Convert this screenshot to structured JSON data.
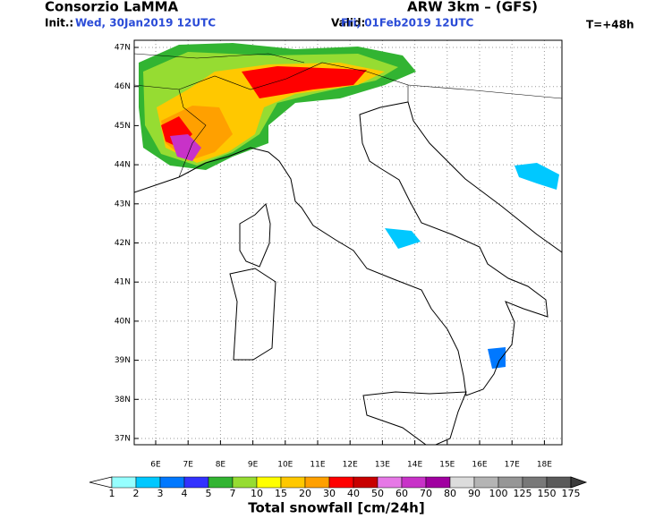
{
  "header": {
    "title": "Consorzio LaMMA",
    "model": "ARW 3km – (GFS)",
    "init_label": "Init.:",
    "init_value": "Wed, 30Jan2019 12UTC",
    "valid_label": "Valid:",
    "valid_value": "Fri, 01Feb2019 12UTC",
    "lead": "T=+48h"
  },
  "map": {
    "lat_labels": [
      "47N",
      "46N",
      "45N",
      "44N",
      "43N",
      "42N",
      "41N",
      "40N",
      "39N",
      "38N",
      "37N"
    ],
    "lon_labels": [
      "6E",
      "7E",
      "8E",
      "9E",
      "10E",
      "11E",
      "12E",
      "13E",
      "14E",
      "15E",
      "16E",
      "17E",
      "18E"
    ]
  },
  "colorbar": {
    "title": "Total snowfall [cm/24h]",
    "labels": [
      1,
      2,
      3,
      4,
      5,
      7,
      10,
      15,
      20,
      30,
      40,
      50,
      60,
      70,
      80,
      90,
      100,
      125,
      150,
      175
    ],
    "colors": [
      "#96ffff",
      "#00c8ff",
      "#0078ff",
      "#3232ff",
      "#32b432",
      "#96dc32",
      "#ffff00",
      "#ffc800",
      "#ffa000",
      "#ff0000",
      "#c80000",
      "#e678e6",
      "#c832c8",
      "#a000a0",
      "#dcdcdc",
      "#b4b4b4",
      "#969696",
      "#787878",
      "#5a5a5a"
    ],
    "under_color": "#ffffff",
    "over_color": "#3c3c3c"
  }
}
